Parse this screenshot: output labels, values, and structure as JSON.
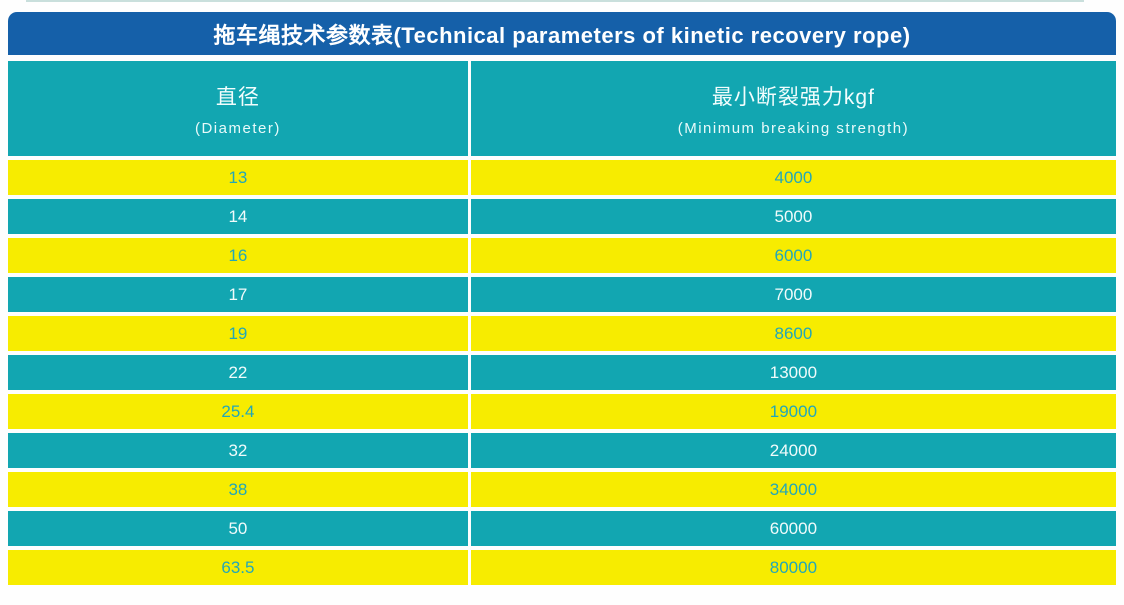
{
  "title": "拖车绳技术参数表(Technical parameters of kinetic recovery rope)",
  "columns": [
    {
      "zh": "直径",
      "en": "(Diameter)"
    },
    {
      "zh": "最小断裂强力kgf",
      "en": "(Minimum breaking strength)"
    }
  ],
  "rows": [
    {
      "diameter": "13",
      "strength": "4000"
    },
    {
      "diameter": "14",
      "strength": "5000"
    },
    {
      "diameter": "16",
      "strength": "6000"
    },
    {
      "diameter": "17",
      "strength": "7000"
    },
    {
      "diameter": "19",
      "strength": "8600"
    },
    {
      "diameter": "22",
      "strength": "13000"
    },
    {
      "diameter": "25.4",
      "strength": "19000"
    },
    {
      "diameter": "32",
      "strength": "24000"
    },
    {
      "diameter": "38",
      "strength": "34000"
    },
    {
      "diameter": "50",
      "strength": "60000"
    },
    {
      "diameter": "63.5",
      "strength": "80000"
    }
  ],
  "colors": {
    "title_bar": "#1560a9",
    "teal": "#12a6b1",
    "yellow": "#f7ec00",
    "teal_text_on_yellow": "#23a7b8",
    "light_text_on_teal": "#f0fbfb"
  }
}
